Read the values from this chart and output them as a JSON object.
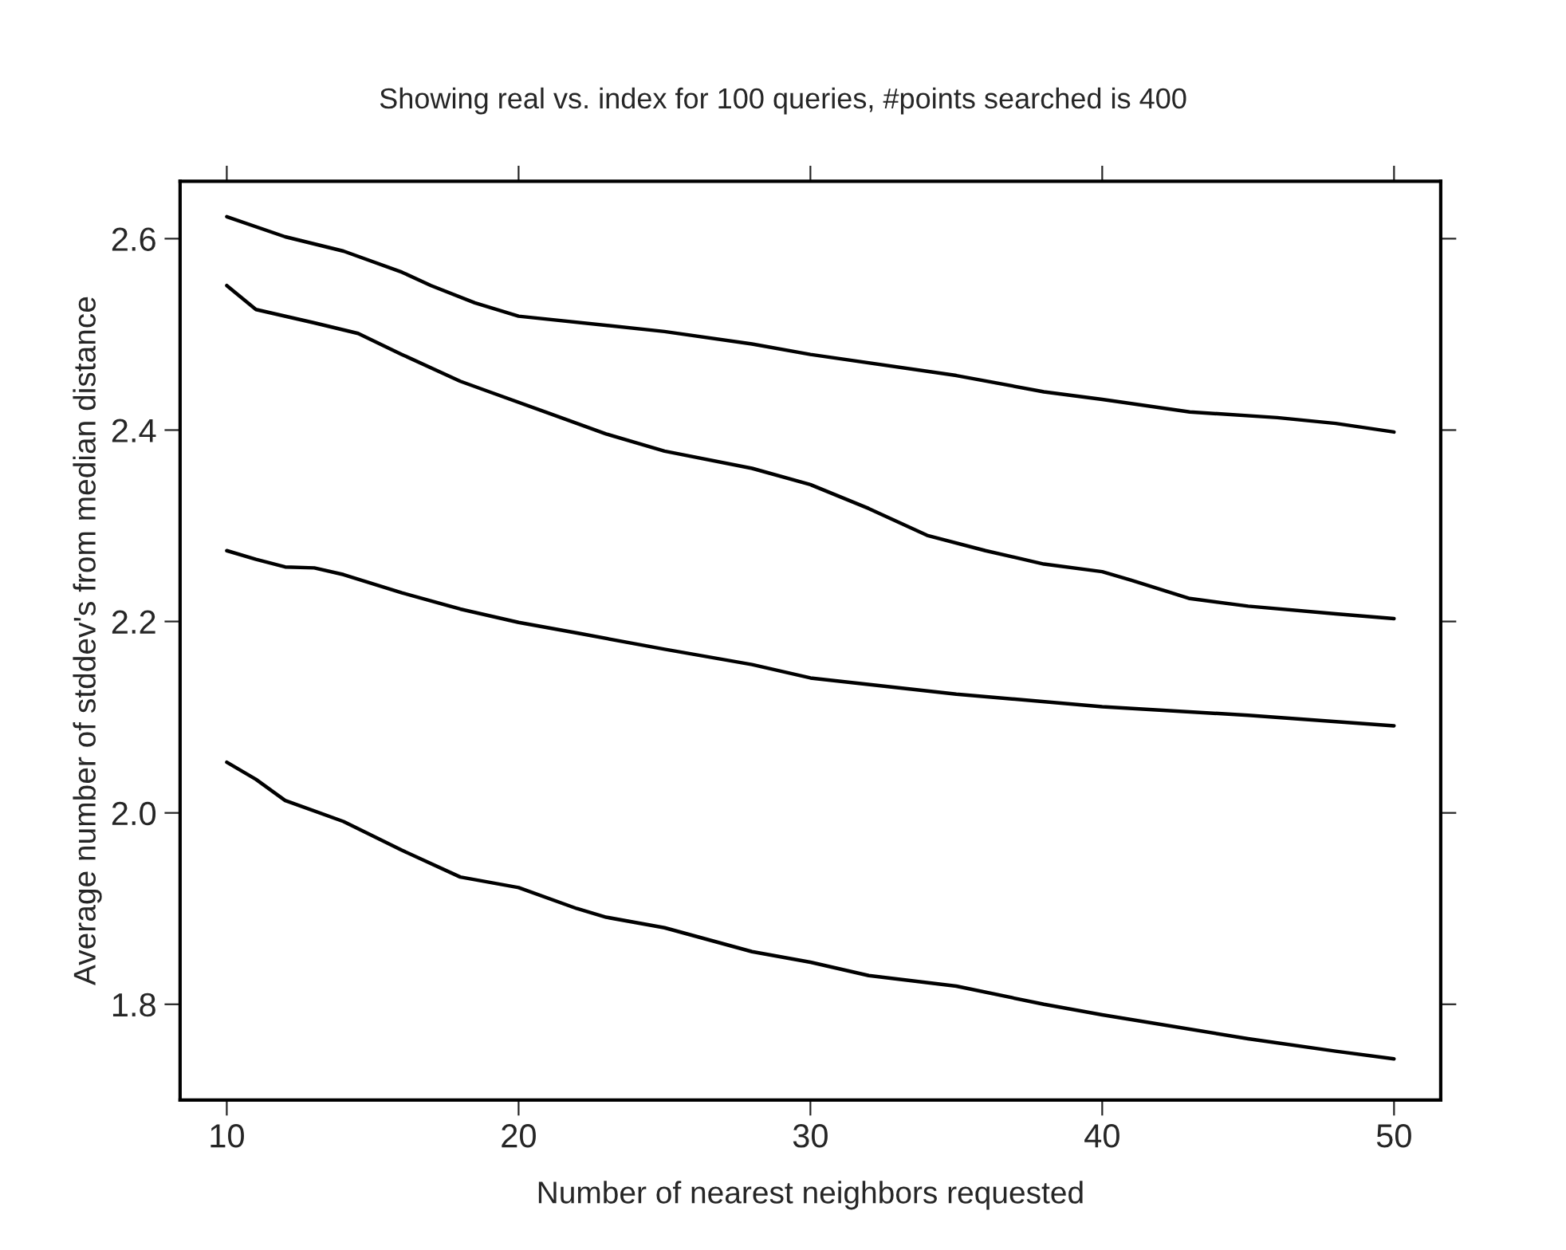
{
  "chart_data": {
    "type": "line",
    "title": "Showing real vs. index for 100 queries, #points searched is 400",
    "xlabel": "Number of nearest neighbors requested",
    "ylabel": "Average number of stddev's from median distance",
    "series": [
      {
        "color": "#000000",
        "x": [
          10,
          12,
          14,
          16,
          17,
          18.5,
          20,
          25,
          28,
          30,
          35,
          38,
          40,
          43,
          46,
          48,
          50
        ],
        "values": [
          2.623,
          2.602,
          2.587,
          2.565,
          2.551,
          2.533,
          2.519,
          2.503,
          2.49,
          2.479,
          2.457,
          2.44,
          2.432,
          2.419,
          2.413,
          2.407,
          2.398
        ]
      },
      {
        "color": "#000000",
        "x": [
          10,
          11,
          13,
          14.5,
          16,
          18,
          19,
          21,
          23,
          25,
          28,
          30,
          32,
          34,
          36,
          38,
          40,
          41,
          43,
          45,
          48,
          50
        ],
        "values": [
          2.551,
          2.526,
          2.512,
          2.501,
          2.479,
          2.451,
          2.44,
          2.418,
          2.396,
          2.378,
          2.36,
          2.343,
          2.318,
          2.29,
          2.274,
          2.26,
          2.252,
          2.243,
          2.224,
          2.216,
          2.208,
          2.203
        ]
      },
      {
        "color": "#000000",
        "x": [
          10,
          11,
          12,
          13,
          14,
          16,
          18,
          20,
          22,
          25,
          28,
          30,
          35,
          40,
          45,
          50
        ],
        "values": [
          2.274,
          2.265,
          2.257,
          2.256,
          2.249,
          2.23,
          2.213,
          2.199,
          2.188,
          2.171,
          2.155,
          2.141,
          2.124,
          2.111,
          2.102,
          2.091
        ]
      },
      {
        "color": "#000000",
        "x": [
          10,
          11,
          12,
          14,
          16,
          18,
          20,
          22,
          23,
          25,
          28,
          30,
          32,
          35,
          38,
          40,
          45,
          48,
          50
        ],
        "values": [
          2.053,
          2.035,
          2.013,
          1.991,
          1.961,
          1.933,
          1.922,
          1.9,
          1.891,
          1.88,
          1.855,
          1.844,
          1.83,
          1.819,
          1.8,
          1.789,
          1.764,
          1.751,
          1.743
        ]
      }
    ],
    "xlim": [
      8.4,
      51.6
    ],
    "xticks": [
      10,
      20,
      30,
      40,
      50
    ],
    "ylim": [
      1.7,
      2.66
    ],
    "yticks": [
      {
        "value": 1.8,
        "label": "1.8"
      },
      {
        "value": 2.0,
        "label": "2.0"
      },
      {
        "value": 2.2,
        "label": "2.2"
      },
      {
        "value": 2.4,
        "label": "2.4"
      },
      {
        "value": 2.6,
        "label": "2.6"
      }
    ],
    "grid": false,
    "marker": "none",
    "line_style": "solid"
  }
}
